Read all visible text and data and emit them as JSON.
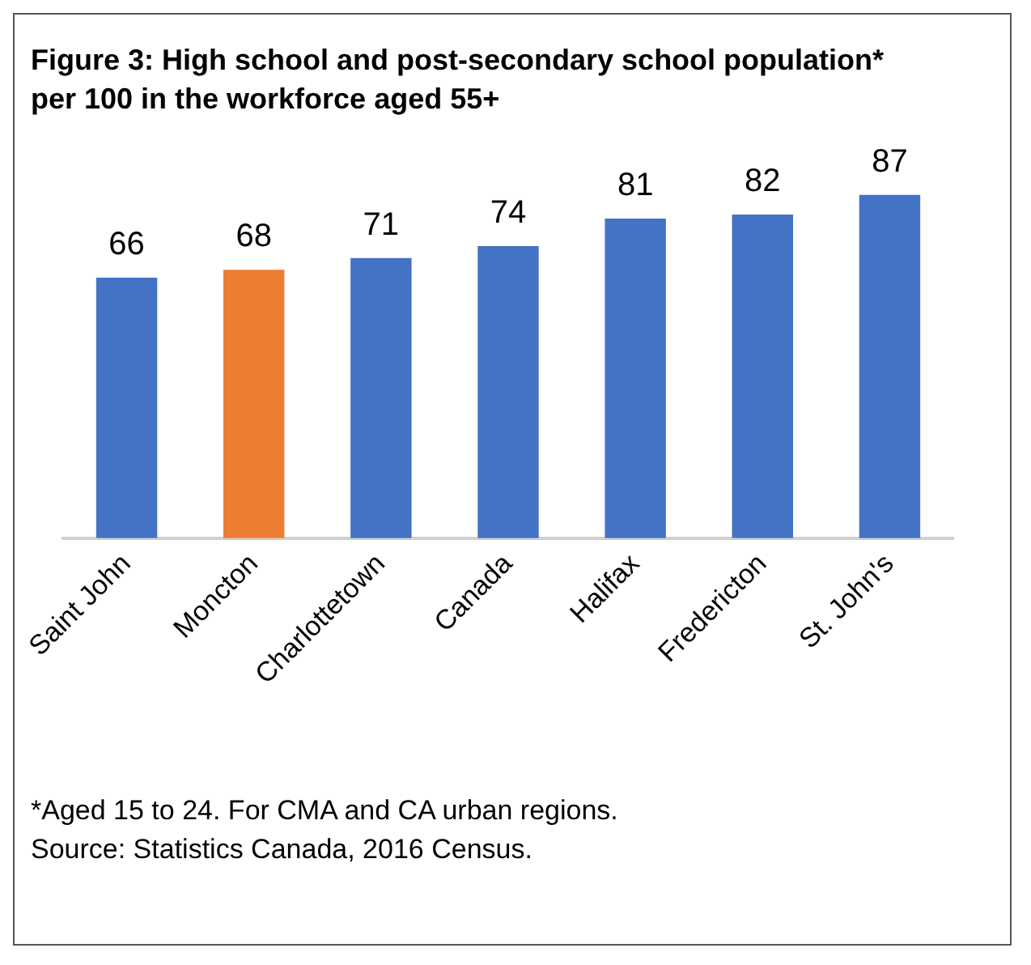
{
  "chart_data": {
    "type": "bar",
    "title": "Figure 3: High school and post-secondary school population* per 100 in the workforce aged 55+",
    "categories": [
      "Saint John",
      "Moncton",
      "Charlottetown",
      "Canada",
      "Halifax",
      "Fredericton",
      "St. John's"
    ],
    "values": [
      66,
      68,
      71,
      74,
      81,
      82,
      87
    ],
    "colors": [
      "#4472c4",
      "#ed7d31",
      "#4472c4",
      "#4472c4",
      "#4472c4",
      "#4472c4",
      "#4472c4"
    ],
    "tick_labels": "x",
    "grid": false,
    "legend": false,
    "data_labels": true,
    "annotations": [
      "*Aged 15 to 24. For CMA and CA urban regions.",
      "Source: Statistics Canada, 2016 Census."
    ]
  }
}
